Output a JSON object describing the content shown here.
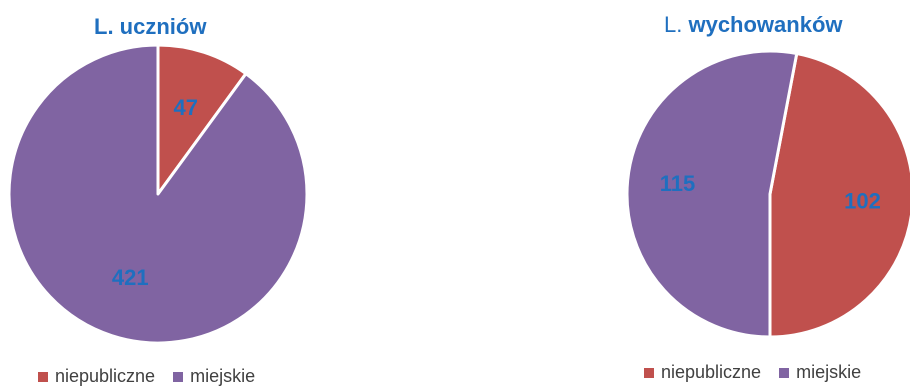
{
  "colors": {
    "niepubliczne": "#C0504D",
    "miejskie": "#8064A2",
    "label": "#1F6FBF"
  },
  "chart_data": [
    {
      "type": "pie",
      "title": "L. uczniów",
      "title_parts": {
        "prefix": "",
        "main": "L. uczniów"
      },
      "categories": [
        "niepubliczne",
        "miejskie"
      ],
      "values": [
        47,
        421
      ],
      "legend": "bottom"
    },
    {
      "type": "pie",
      "title": "L. wychowanków",
      "title_parts": {
        "prefix": "L. ",
        "main": "wychowanków"
      },
      "categories": [
        "niepubliczne",
        "miejskie"
      ],
      "values": [
        102,
        115
      ],
      "legend": "bottom"
    }
  ]
}
